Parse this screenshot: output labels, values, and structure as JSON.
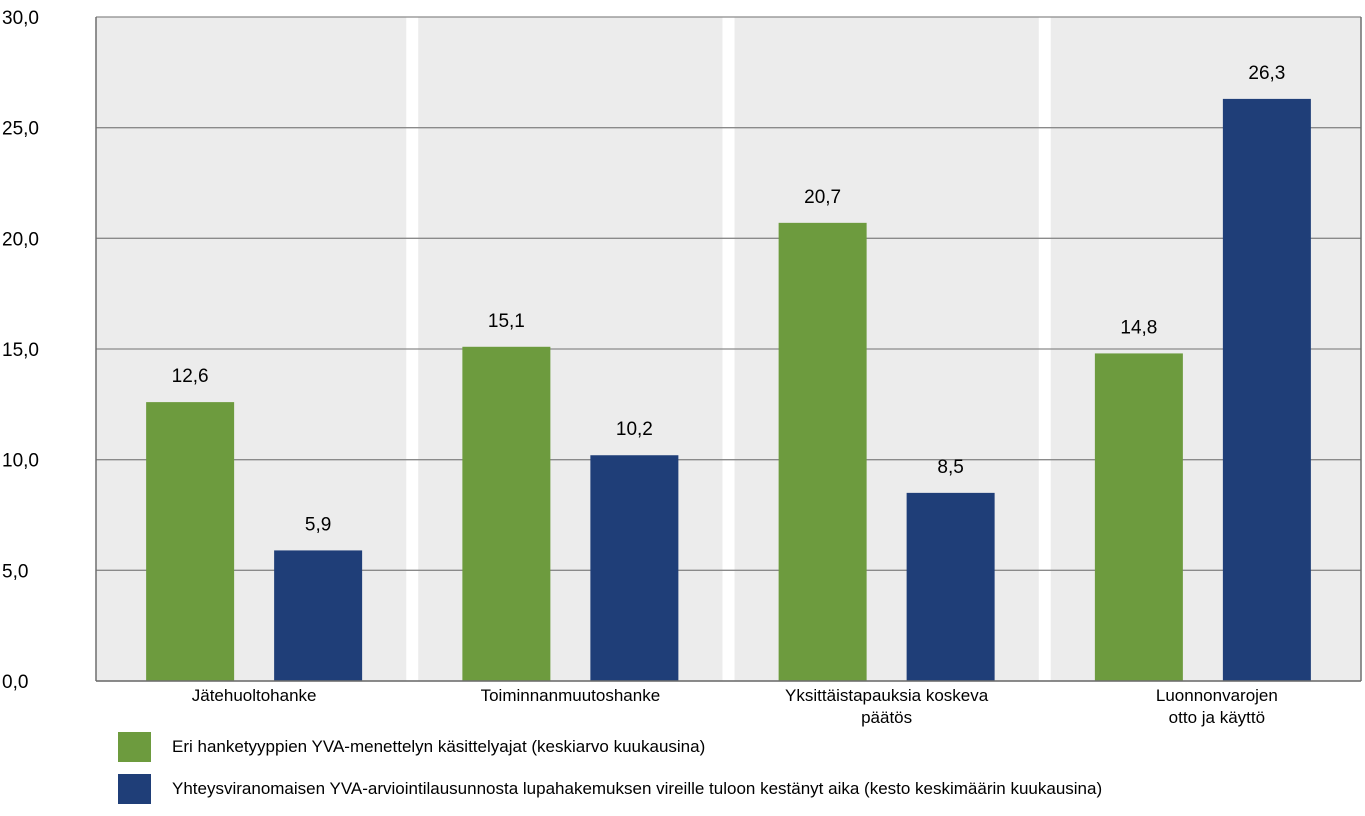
{
  "chart_data": {
    "type": "bar",
    "categories": [
      [
        "Jätehuoltohanke"
      ],
      [
        "Toiminnanmuutoshanke"
      ],
      [
        "Yksittäistapauksia koskeva",
        "päätös"
      ],
      [
        "Luonnonvarojen",
        "otto ja käyttö"
      ]
    ],
    "series": [
      {
        "name": "Eri hanketyyppien YVA-menettelyn käsittelyajat (keskiarvo kuukausina)",
        "color": "#6d9b3e",
        "values": [
          12.6,
          15.1,
          20.7,
          14.8
        ],
        "labels": [
          "12,6",
          "15,1",
          "20,7",
          "14,8"
        ]
      },
      {
        "name": "Yhteysviranomaisen YVA-arviointilausunnosta lupahakemuksen vireille tuloon kestänyt aika (kesto keskimäärin kuukausina)",
        "color": "#1f3e78",
        "values": [
          5.9,
          10.2,
          8.5,
          26.3
        ],
        "labels": [
          "5,9",
          "10,2",
          "8,5",
          "26,3"
        ]
      }
    ],
    "ylim": [
      0,
      30
    ],
    "yticks": [
      0,
      5,
      10,
      15,
      20,
      25,
      30
    ],
    "ytick_labels": [
      "0,0",
      "5,0",
      "10,0",
      "15,0",
      "20,0",
      "25,0",
      "30,0"
    ],
    "grid": true,
    "legend_position": "bottom",
    "colors": {
      "plot_background": "#ececec",
      "gridline": "#8a8a8a"
    }
  }
}
